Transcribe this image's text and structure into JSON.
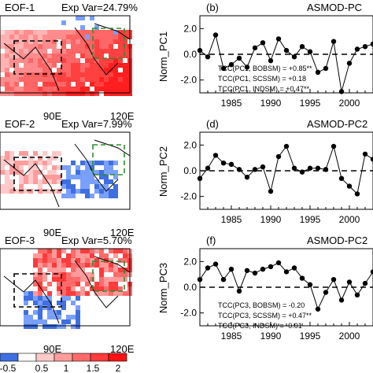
{
  "maps": [
    {
      "title": "EOF-1",
      "expvar": "Exp Var=24.79%",
      "lon_labels": [
        "90E",
        "120E"
      ]
    },
    {
      "title": "EOF-2",
      "expvar": "Exp Var=7.99%",
      "lon_labels": [
        "90E",
        "120E"
      ]
    },
    {
      "title": "EOF-3",
      "expvar": "Exp Var=5.70%",
      "lon_labels": [
        "90E",
        "120E"
      ]
    }
  ],
  "colorbar": {
    "ticks": [
      "-0.5",
      "0.5",
      "1",
      "1.5",
      "2"
    ],
    "colors": [
      "#3f6fe0",
      "#ffffff",
      "#ffc9c9",
      "#ff9b9b",
      "#ff6b6b",
      "#ff3b3b",
      "#ff1111"
    ]
  },
  "chart_data": [
    {
      "type": "line",
      "panel_label": "(b)",
      "title": "ASMOD-PC",
      "ylabel": "Norm_PC1",
      "ylim": [
        -3,
        3
      ],
      "xlim": [
        1981,
        2003
      ],
      "xticks": [
        1985,
        1990,
        1995,
        2000,
        "200"
      ],
      "yticks": [
        "2.0",
        "0.0",
        "-2.0"
      ],
      "x": [
        1981,
        1982,
        1983,
        1984,
        1985,
        1986,
        1987,
        1988,
        1989,
        1990,
        1991,
        1992,
        1993,
        1994,
        1995,
        1996,
        1997,
        1998,
        1999,
        2000,
        2001,
        2002,
        2003
      ],
      "values": [
        0.3,
        -0.2,
        1.5,
        -1.1,
        -0.8,
        -0.3,
        -1.0,
        0.5,
        0.9,
        -0.5,
        1.2,
        0.3,
        -0.2,
        0.6,
        0.2,
        -1.4,
        -1.1,
        1.0,
        -2.9,
        -0.7,
        0.4,
        0.6,
        0.8
      ],
      "zero_line": "dashed",
      "annotations": [
        "TCC(PC1, BOBSM) = +0.85**",
        "TCC(PC1, SCSSM) = +0.18",
        "TCC(PC1, INDSM) = +0.47**"
      ]
    },
    {
      "type": "line",
      "panel_label": "(d)",
      "title": "ASMOD-PC2",
      "ylabel": "Norm_PC2",
      "ylim": [
        -3,
        3
      ],
      "xlim": [
        1981,
        2003
      ],
      "xticks": [
        1985,
        1990,
        1995,
        2000,
        "200"
      ],
      "yticks": [
        "2.0",
        "0.0",
        "-2.0"
      ],
      "x": [
        1981,
        1982,
        1983,
        1984,
        1985,
        1986,
        1987,
        1988,
        1989,
        1990,
        1991,
        1992,
        1993,
        1994,
        1995,
        1996,
        1997,
        1998,
        1999,
        2000,
        2001,
        2002,
        2003
      ],
      "values": [
        -0.6,
        0.2,
        1.2,
        0.6,
        0.5,
        0.1,
        -0.5,
        0.1,
        0.3,
        -1.6,
        1.1,
        1.9,
        0.2,
        -0.1,
        0.2,
        0.2,
        0.1,
        1.9,
        -0.6,
        -1.2,
        -1.8,
        1.3,
        0.9
      ],
      "zero_line": "dashed",
      "annotations": []
    },
    {
      "type": "line",
      "panel_label": "(f)",
      "title": "ASMOD-PC2",
      "ylabel": "Norm_PC3",
      "ylim": [
        -3,
        3
      ],
      "xlim": [
        1981,
        2003
      ],
      "xticks": [
        1985,
        1990,
        1995,
        2000,
        "200"
      ],
      "yticks": [
        "2.0",
        "0.0",
        "-2.0"
      ],
      "x": [
        1981,
        1982,
        1983,
        1984,
        1985,
        1986,
        1987,
        1988,
        1989,
        1990,
        1991,
        1992,
        1993,
        1994,
        1995,
        1996,
        1997,
        1998,
        1999,
        2000,
        2001,
        2002,
        2003
      ],
      "values": [
        0.6,
        1.5,
        1.8,
        0.6,
        1.4,
        -0.3,
        1.3,
        1.1,
        1.4,
        1.6,
        1.9,
        1.2,
        1.5,
        0.7,
        0.2,
        -1.7,
        -0.4,
        0.6,
        -1.0,
        0.4,
        -0.6,
        0.3,
        1.2
      ],
      "zero_line": "dashed",
      "annotations": [
        "TCC(PC3, BOBSM) = -0.20",
        "TCC(PC3, SCSSM) = +0.47**",
        "TCC(PC3, INDSM) = -0.01"
      ]
    }
  ]
}
